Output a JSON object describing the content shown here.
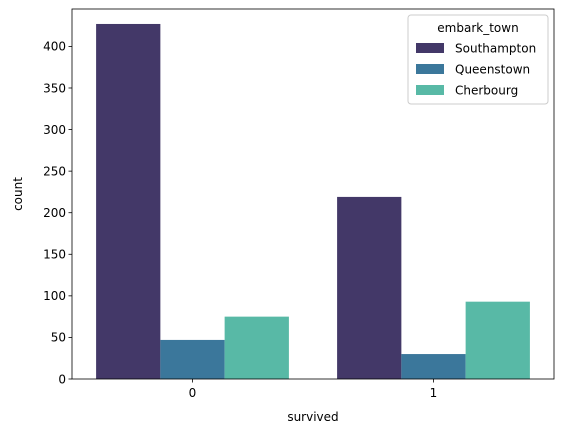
{
  "chart_data": {
    "type": "bar",
    "title": "",
    "xlabel": "survived",
    "ylabel": "count",
    "categories": [
      "0",
      "1"
    ],
    "ylim": [
      0,
      445
    ],
    "yticks": [
      0,
      50,
      100,
      150,
      200,
      250,
      300,
      350,
      400
    ],
    "grid": false,
    "legend": {
      "title": "embark_town",
      "placement": "top-right"
    },
    "series": [
      {
        "name": "Southampton",
        "values": [
          427,
          219
        ],
        "color": "#433868"
      },
      {
        "name": "Queenstown",
        "values": [
          47,
          30
        ],
        "color": "#3b779b"
      },
      {
        "name": "Cherbourg",
        "values": [
          75,
          93
        ],
        "color": "#58b9a6"
      }
    ]
  }
}
